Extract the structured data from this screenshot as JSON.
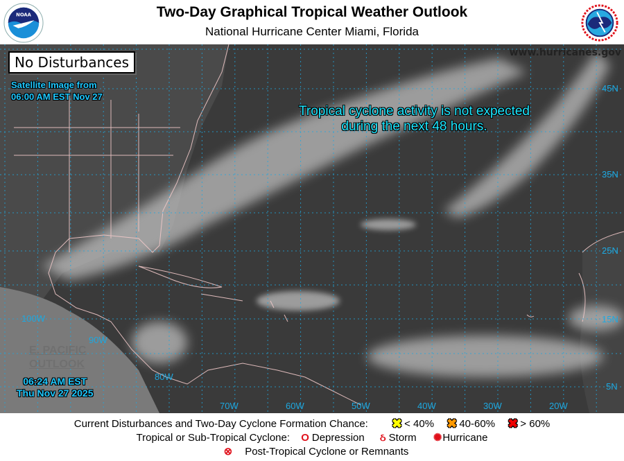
{
  "header": {
    "title": "Two-Day Graphical Tropical Weather Outlook",
    "subtitle": "National Hurricane Center  Miami, Florida",
    "left_logo": "NOAA",
    "right_logo": "NATIONAL WEATHER SERVICE"
  },
  "map": {
    "status_box": "No Disturbances",
    "satellite_line1": "Satellite Image from",
    "satellite_line2": "06:00 AM EST Nov 27",
    "website": "www.hurricanes.gov",
    "message_line1": "Tropical cyclone activity is not expected",
    "message_line2": "during the next 48 hours.",
    "epac_line1": "E. PACIFIC",
    "epac_line2": "OUTLOOK",
    "time_line1": "06:24 AM EST",
    "time_line2": "Thu Nov 27 2025",
    "lat_labels": [
      "45N",
      "35N",
      "25N",
      "15N",
      "5N"
    ],
    "lon_labels": [
      "100W",
      "90W",
      "80W",
      "70W",
      "60W",
      "50W",
      "40W",
      "30W",
      "20W"
    ]
  },
  "legend": {
    "row1_label": "Current Disturbances and Two-Day Cyclone Formation Chance:",
    "low": "< 40%",
    "medium": "40-60%",
    "high": "> 60%",
    "colors": {
      "low": "#ffff00",
      "medium": "#ff9900",
      "high": "#ee0000"
    },
    "row2_label": "Tropical or Sub-Tropical Cyclone:",
    "depression": "Depression",
    "storm": "Storm",
    "hurricane": "Hurricane",
    "post_tropical": "Post-Tropical Cyclone or Remnants"
  }
}
